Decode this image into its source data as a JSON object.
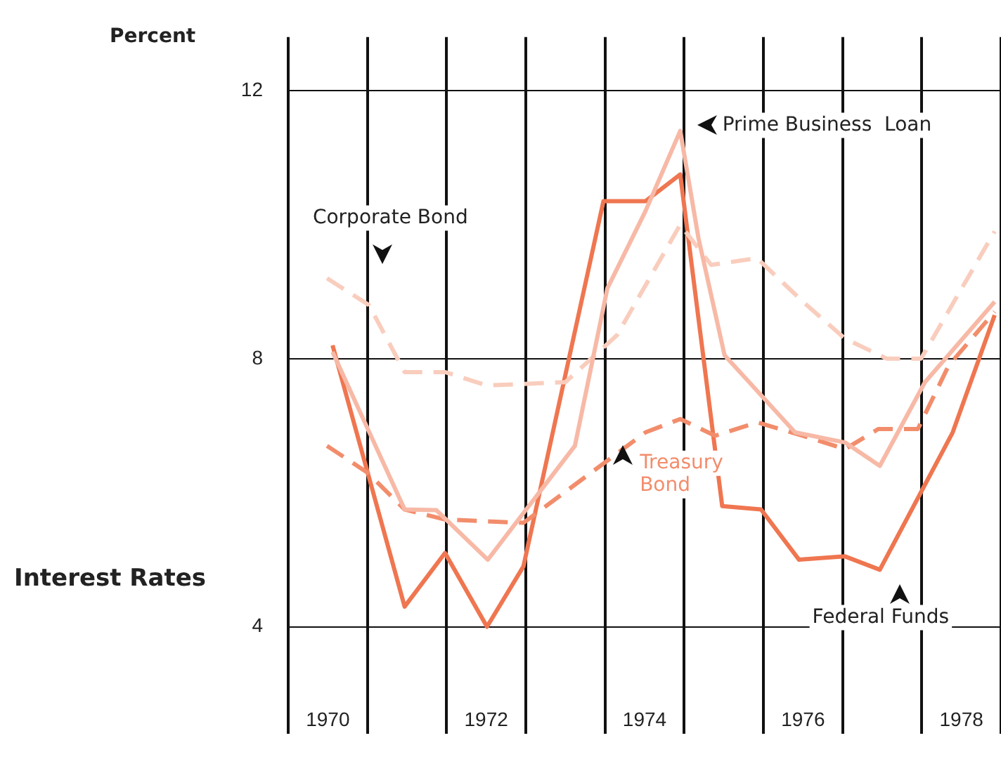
{
  "chart_data": {
    "type": "line",
    "title": "Interest Rates",
    "ylabel": "Percent",
    "xlim": [
      1970,
      1979
    ],
    "ylim": [
      2.4,
      12.8
    ],
    "yticks": [
      4,
      8,
      12
    ],
    "xticks": [
      {
        "value": 1970,
        "label": null
      },
      {
        "value": 1970.5,
        "label": "1970"
      },
      {
        "value": 1971,
        "label": null
      },
      {
        "value": 1972,
        "label": null
      },
      {
        "value": 1972.5,
        "label": "1972"
      },
      {
        "value": 1973,
        "label": null
      },
      {
        "value": 1974,
        "label": null
      },
      {
        "value": 1974.5,
        "label": "1974"
      },
      {
        "value": 1975,
        "label": null
      },
      {
        "value": 1976,
        "label": null
      },
      {
        "value": 1976.5,
        "label": "1976"
      },
      {
        "value": 1977,
        "label": null
      },
      {
        "value": 1978,
        "label": null
      },
      {
        "value": 1978.5,
        "label": "1978"
      },
      {
        "value": 1979,
        "label": null
      }
    ],
    "grid": true,
    "legend": false,
    "marker": "none",
    "series": [
      {
        "name": "Prime Business  Loan",
        "color": "#f7b9a6",
        "line_style": "solid",
        "x": [
          1970.56,
          1971.47,
          1971.87,
          1972.52,
          1973.62,
          1974.03,
          1974.51,
          1974.95,
          1975.18,
          1975.51,
          1976.4,
          1977.03,
          1977.47,
          1978.04,
          1978.92
        ],
        "values": [
          8.1,
          5.75,
          5.74,
          5.0,
          6.7,
          9.05,
          10.2,
          11.4,
          9.8,
          8.05,
          6.9,
          6.75,
          6.4,
          7.65,
          8.85
        ]
      },
      {
        "name": "Corporate Bond",
        "color": "#f9cdbd",
        "line_style": "dashed",
        "x": [
          1970.49,
          1971.02,
          1971.47,
          1971.98,
          1972.51,
          1973.5,
          1974.15,
          1974.95,
          1975.34,
          1975.92,
          1976.5,
          1977.03,
          1977.56,
          1977.99,
          1978.92
        ],
        "values": [
          9.2,
          8.8,
          7.8,
          7.8,
          7.6,
          7.65,
          8.35,
          10.0,
          9.4,
          9.5,
          8.85,
          8.3,
          8.0,
          8.0,
          9.9
        ]
      },
      {
        "name": "Treasury Bond",
        "color": "#f28d6c",
        "line_style": "dashed",
        "x": [
          1970.49,
          1971.0,
          1971.47,
          1971.98,
          1972.97,
          1974.51,
          1974.95,
          1975.39,
          1975.92,
          1976.5,
          1977.03,
          1977.45,
          1977.95,
          1978.34,
          1978.92
        ],
        "values": [
          6.7,
          6.3,
          5.75,
          5.6,
          5.55,
          6.9,
          7.1,
          6.85,
          7.05,
          6.85,
          6.65,
          6.95,
          6.95,
          7.9,
          8.7
        ]
      },
      {
        "name": "Federal Funds",
        "color": "#ef7650",
        "line_style": "solid",
        "x": [
          1970.56,
          1971.47,
          1971.98,
          1972.51,
          1972.97,
          1973.98,
          1974.51,
          1974.95,
          1975.48,
          1975.97,
          1976.45,
          1977.03,
          1977.47,
          1978.39,
          1978.92
        ],
        "values": [
          8.2,
          4.3,
          5.1,
          4.0,
          4.9,
          10.35,
          10.35,
          10.75,
          5.8,
          5.75,
          5.0,
          5.05,
          4.85,
          6.9,
          8.65
        ]
      }
    ]
  }
}
